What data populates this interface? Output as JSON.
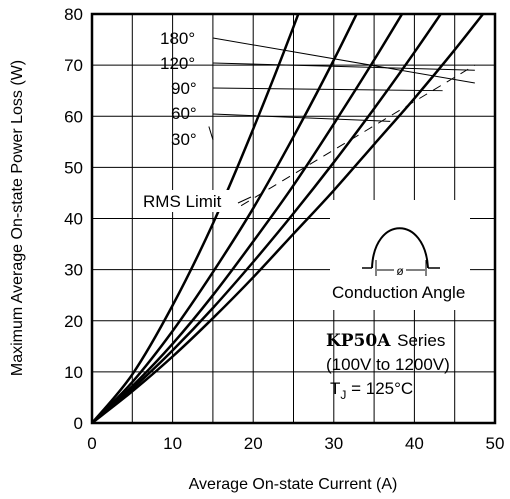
{
  "chart_data": {
    "type": "line",
    "xlabel": "Average On-state Current (A)",
    "ylabel": "Maximum Average On-state Power Loss (W)",
    "xlim": [
      0,
      50
    ],
    "ylim": [
      0,
      80
    ],
    "x_ticks": [
      "0",
      "10",
      "20",
      "30",
      "40",
      "50"
    ],
    "y_ticks": [
      "0",
      "10",
      "20",
      "30",
      "40",
      "50",
      "60",
      "70",
      "80"
    ],
    "grid": true,
    "series": [
      {
        "name": "180°",
        "x": [
          0,
          5,
          10,
          15,
          20,
          25,
          30,
          35,
          40,
          45,
          50
        ],
        "y": [
          0,
          6.2,
          13,
          20.5,
          28.5,
          37,
          45.5,
          54.5,
          63.5,
          73,
          83
        ]
      },
      {
        "name": "120°",
        "x": [
          0,
          5,
          10,
          15,
          20,
          25,
          30,
          35,
          40,
          45
        ],
        "y": [
          0,
          6.7,
          14.2,
          22.5,
          31.5,
          41,
          51,
          61.5,
          72.5,
          84
        ]
      },
      {
        "name": "90°",
        "x": [
          0,
          5,
          10,
          15,
          20,
          25,
          30,
          35,
          40
        ],
        "y": [
          0,
          7.2,
          15.5,
          25,
          35.5,
          46.5,
          58.5,
          71,
          84
        ]
      },
      {
        "name": "60°",
        "x": [
          0,
          5,
          10,
          15,
          20,
          25,
          30,
          35
        ],
        "y": [
          0,
          8,
          18,
          29.5,
          42,
          56,
          71,
          87
        ]
      },
      {
        "name": "30°",
        "x": [
          0,
          5,
          10,
          15,
          20,
          25,
          30
        ],
        "y": [
          0,
          9.5,
          23,
          39,
          57.5,
          77.5,
          99
        ]
      }
    ],
    "rms_limit": {
      "label": "RMS Limit",
      "x": [
        18.5,
        47.5
      ],
      "y": [
        42.5,
        70
      ]
    },
    "inset_label": "Conduction Angle",
    "inset_symbol": "ø",
    "device_model": "KP50A",
    "device_series_word": "Series",
    "voltage_range": "(100V to 1200V)",
    "tj_prefix": "T",
    "tj_sub": "J",
    "tj_suffix": " = 125°C"
  }
}
